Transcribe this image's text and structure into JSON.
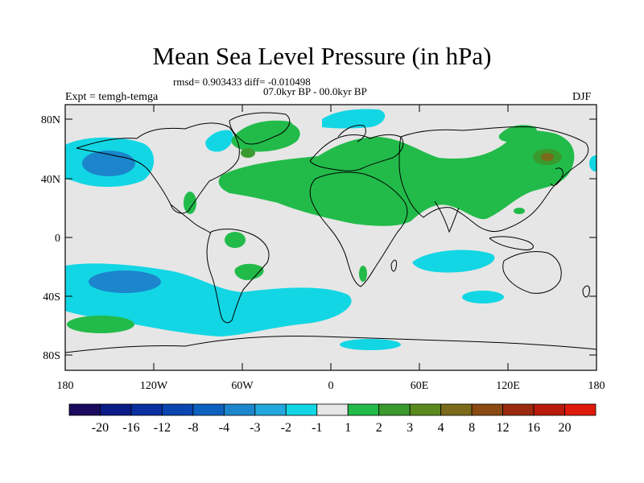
{
  "title": "Mean Sea Level Pressure (in hPa)",
  "stats": "rmsd= 0.903433 diff= -0.010498",
  "period": "07.0kyr BP - 00.0kyr BP",
  "experiment": "Expt = temgh-temga",
  "season": "DJF",
  "axes": {
    "y_ticks": [
      "80N",
      "40N",
      "0",
      "40S",
      "80S"
    ],
    "x_ticks": [
      "180",
      "120W",
      "60W",
      "0",
      "60E",
      "120E",
      "180"
    ]
  },
  "colorbar": {
    "labels": [
      "-20",
      "-16",
      "-12",
      "-8",
      "-4",
      "-3",
      "-2",
      "-1",
      "1",
      "2",
      "3",
      "4",
      "8",
      "12",
      "16",
      "20"
    ],
    "colors": [
      "#1a0b5e",
      "#0b1b86",
      "#0a2f9e",
      "#0a45b0",
      "#0d62c0",
      "#1b86cc",
      "#22a8dc",
      "#13d6e4",
      "#e6e6e6",
      "#22bb4a",
      "#3a9a2e",
      "#5a8a1e",
      "#7a6a1a",
      "#8a4a12",
      "#9a2a0e",
      "#b81a0c",
      "#e01a0a"
    ]
  },
  "palette": {
    "land_background": "#e6e6e6",
    "negative_light": "#13d6e4",
    "negative_mid": "#1b86cc",
    "negative_strong": "#0a2f9e",
    "positive_light": "#22bb4a",
    "positive_mid": "#3a9a2e",
    "positive_strong": "#7a6a1a"
  }
}
